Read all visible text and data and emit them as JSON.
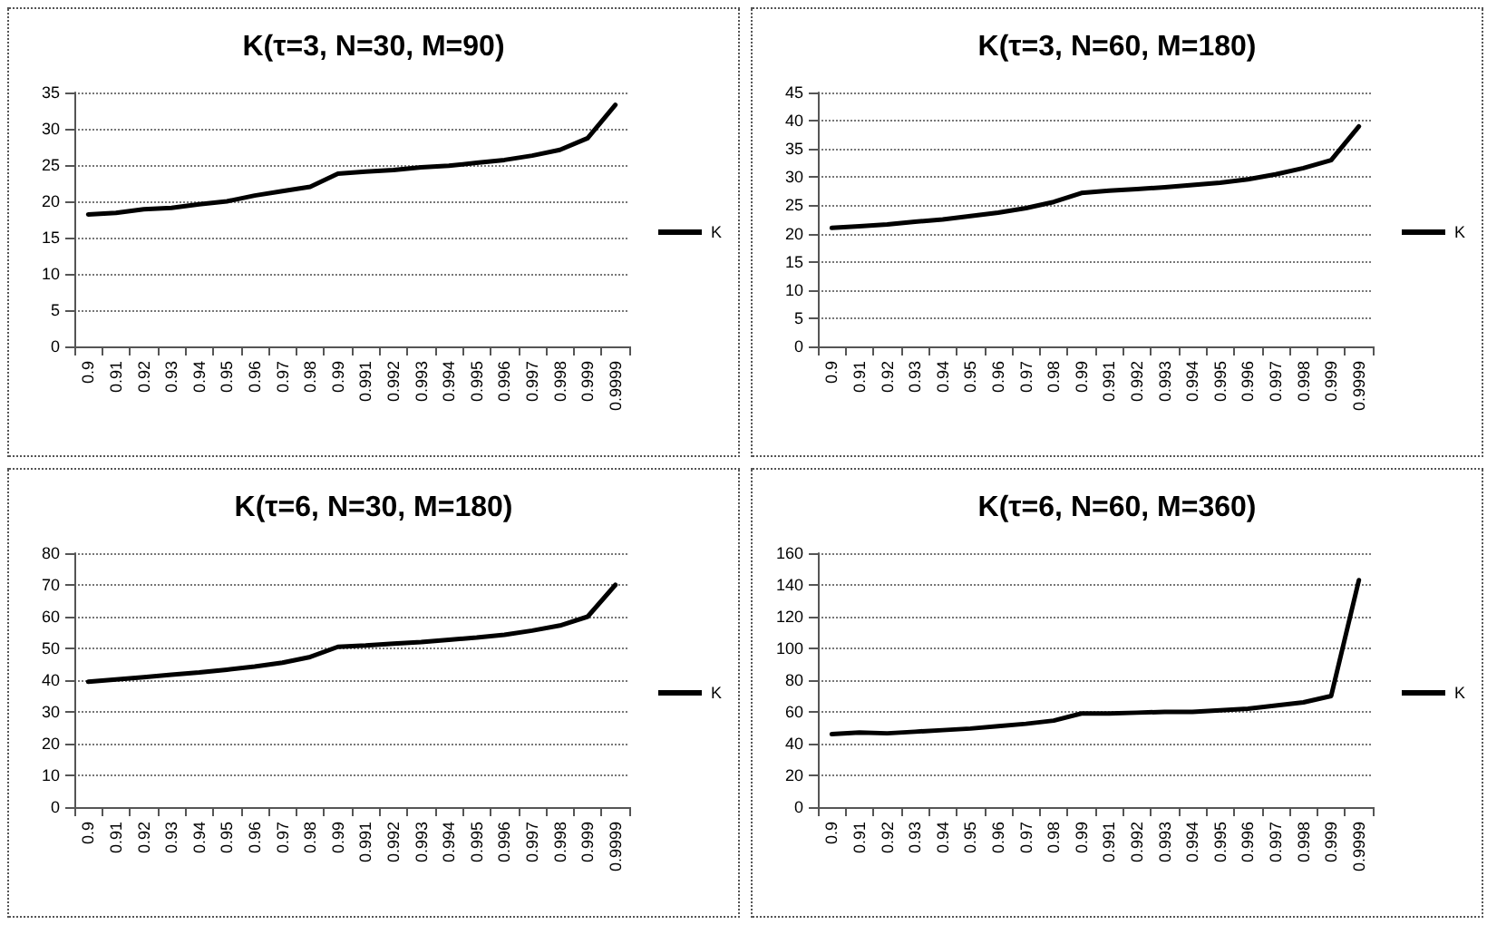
{
  "chart_data": [
    {
      "type": "line",
      "title": "K(τ=3, N=30, M=90)",
      "categories": [
        "0.9",
        "0.91",
        "0.92",
        "0.93",
        "0.94",
        "0.95",
        "0.96",
        "0.97",
        "0.98",
        "0.99",
        "0.991",
        "0.992",
        "0.993",
        "0.994",
        "0.995",
        "0.996",
        "0.997",
        "0.998",
        "0.999",
        "0.9999"
      ],
      "series": [
        {
          "name": "K",
          "color": "#000000",
          "values": [
            18.2,
            18.4,
            18.9,
            19.1,
            19.6,
            20.0,
            20.8,
            21.4,
            22.0,
            23.8,
            24.1,
            24.3,
            24.7,
            24.9,
            25.3,
            25.7,
            26.3,
            27.1,
            28.7,
            33.3
          ]
        }
      ],
      "ylim": [
        0,
        35
      ],
      "yticks": [
        0,
        5,
        10,
        15,
        20,
        25,
        30,
        35
      ],
      "grid": "y",
      "legend": "right",
      "marker": "none"
    },
    {
      "type": "line",
      "title": "K(τ=3, N=60, M=180)",
      "categories": [
        "0.9",
        "0.91",
        "0.92",
        "0.93",
        "0.94",
        "0.95",
        "0.96",
        "0.97",
        "0.98",
        "0.99",
        "0.991",
        "0.992",
        "0.993",
        "0.994",
        "0.995",
        "0.996",
        "0.997",
        "0.998",
        "0.999",
        "0.9999"
      ],
      "series": [
        {
          "name": "K",
          "color": "#000000",
          "values": [
            21.0,
            21.3,
            21.6,
            22.1,
            22.5,
            23.1,
            23.7,
            24.5,
            25.6,
            27.2,
            27.6,
            27.9,
            28.2,
            28.6,
            29.0,
            29.6,
            30.5,
            31.6,
            33.0,
            39.0
          ]
        }
      ],
      "ylim": [
        0,
        45
      ],
      "yticks": [
        0,
        5,
        10,
        15,
        20,
        25,
        30,
        35,
        40,
        45
      ],
      "grid": "y",
      "legend": "right",
      "marker": "none"
    },
    {
      "type": "line",
      "title": "K(τ=6, N=30, M=180)",
      "categories": [
        "0.9",
        "0.91",
        "0.92",
        "0.93",
        "0.94",
        "0.95",
        "0.96",
        "0.97",
        "0.98",
        "0.99",
        "0.991",
        "0.992",
        "0.993",
        "0.994",
        "0.995",
        "0.996",
        "0.997",
        "0.998",
        "0.999",
        "0.9999"
      ],
      "series": [
        {
          "name": "K",
          "color": "#000000",
          "values": [
            39.5,
            40.2,
            40.9,
            41.7,
            42.4,
            43.3,
            44.3,
            45.5,
            47.3,
            50.5,
            50.9,
            51.5,
            52.0,
            52.7,
            53.4,
            54.3,
            55.6,
            57.2,
            60.0,
            70.0
          ]
        }
      ],
      "ylim": [
        0,
        80
      ],
      "yticks": [
        0,
        10,
        20,
        30,
        40,
        50,
        60,
        70,
        80
      ],
      "grid": "y",
      "legend": "right",
      "marker": "none"
    },
    {
      "type": "line",
      "title": "K(τ=6, N=60, M=360)",
      "categories": [
        "0.9",
        "0.91",
        "0.92",
        "0.93",
        "0.94",
        "0.95",
        "0.96",
        "0.97",
        "0.98",
        "0.99",
        "0.991",
        "0.992",
        "0.993",
        "0.994",
        "0.995",
        "0.996",
        "0.997",
        "0.998",
        "0.999",
        "0.9999"
      ],
      "series": [
        {
          "name": "K",
          "color": "#000000",
          "values": [
            46,
            47,
            46.5,
            47.5,
            48.5,
            49.5,
            51,
            52.5,
            54.5,
            59,
            59,
            59.5,
            60,
            60,
            61,
            62,
            64,
            66,
            70,
            143
          ]
        }
      ],
      "ylim": [
        0,
        160
      ],
      "yticks": [
        0,
        20,
        40,
        60,
        80,
        100,
        120,
        140,
        160
      ],
      "grid": "y",
      "legend": "right",
      "marker": "none"
    }
  ]
}
